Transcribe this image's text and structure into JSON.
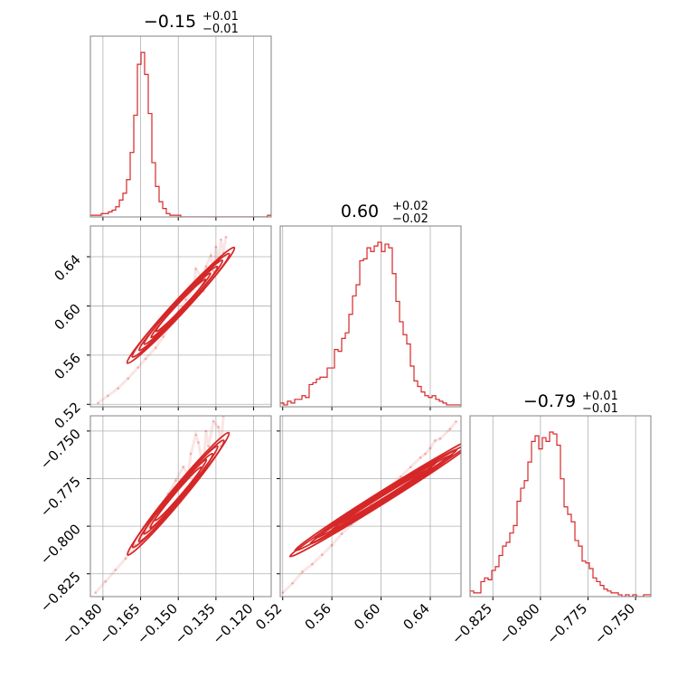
{
  "chart_data": {
    "type": "corner",
    "color": "#d62728",
    "grid": true,
    "parameters": [
      {
        "title": {
          "median": "−0.15",
          "plus": "+0.01",
          "minus": "−0.01"
        },
        "range": [
          -0.185,
          -0.113
        ],
        "ticks": [
          {
            "value": -0.18,
            "label": "−0.180"
          },
          {
            "value": -0.165,
            "label": "−0.165"
          },
          {
            "value": -0.15,
            "label": "−0.150"
          },
          {
            "value": -0.135,
            "label": "−0.135"
          },
          {
            "value": -0.12,
            "label": "−0.120"
          }
        ]
      },
      {
        "title": {
          "median": "0.60",
          "plus": "+0.02",
          "minus": "−0.02"
        },
        "range": [
          0.518,
          0.665
        ],
        "ticks": [
          {
            "value": 0.52,
            "label": "0.52"
          },
          {
            "value": 0.56,
            "label": "0.56"
          },
          {
            "value": 0.6,
            "label": "0.60"
          },
          {
            "value": 0.64,
            "label": "0.64"
          }
        ]
      },
      {
        "title": {
          "median": "−0.79",
          "plus": "+0.01",
          "minus": "−0.01"
        },
        "range": [
          -0.837,
          -0.742
        ],
        "ticks": [
          {
            "value": -0.825,
            "label": "−0.825"
          },
          {
            "value": -0.8,
            "label": "−0.800"
          },
          {
            "value": -0.775,
            "label": "−0.775"
          },
          {
            "value": -0.75,
            "label": "−0.750"
          }
        ]
      }
    ],
    "histograms": [
      {
        "bin_start": -0.185,
        "bin_width": 0.00144,
        "counts": [
          1,
          1,
          1,
          2,
          2,
          3,
          4,
          6,
          10,
          14,
          22,
          38,
          60,
          90,
          97,
          84,
          61,
          32,
          18,
          9,
          5,
          2,
          1,
          1,
          1,
          0,
          0,
          0,
          0,
          0,
          0,
          0,
          0,
          0,
          0,
          0,
          0,
          0,
          0,
          0,
          0,
          0,
          0,
          0,
          0,
          0,
          0,
          0,
          0,
          1
        ]
      },
      {
        "bin_start": 0.518,
        "bin_width": 0.00294,
        "counts": [
          2,
          1,
          3,
          2,
          4,
          4,
          6,
          5,
          12,
          13,
          15,
          16,
          16,
          21,
          21,
          31,
          30,
          37,
          40,
          50,
          60,
          66,
          79,
          80,
          86,
          84,
          87,
          89,
          84,
          88,
          86,
          72,
          57,
          46,
          39,
          34,
          22,
          14,
          11,
          8,
          6,
          5,
          6,
          4,
          3,
          2,
          1,
          1,
          1,
          1
        ]
      },
      {
        "bin_start": -0.837,
        "bin_width": 0.0019,
        "counts": [
          3,
          2,
          2,
          8,
          10,
          9,
          14,
          16,
          22,
          27,
          29,
          34,
          38,
          51,
          58,
          62,
          72,
          83,
          86,
          79,
          85,
          83,
          88,
          87,
          81,
          63,
          48,
          44,
          40,
          30,
          27,
          19,
          18,
          15,
          10,
          8,
          6,
          4,
          3,
          2,
          2,
          1,
          0,
          1,
          0,
          1,
          0,
          0,
          1,
          1
        ]
      }
    ],
    "scatter": [
      {
        "x_param": 0,
        "y_param": 1,
        "points": [
          [
            -0.182,
            0.521
          ],
          [
            -0.178,
            0.527
          ],
          [
            -0.174,
            0.533
          ],
          [
            -0.17,
            0.541
          ],
          [
            -0.166,
            0.55
          ],
          [
            -0.163,
            0.557
          ],
          [
            -0.159,
            0.566
          ],
          [
            -0.156,
            0.575
          ],
          [
            -0.153,
            0.585
          ],
          [
            -0.15,
            0.595
          ],
          [
            -0.147,
            0.605
          ],
          [
            -0.144,
            0.614
          ],
          [
            -0.141,
            0.624
          ],
          [
            -0.139,
            0.632
          ],
          [
            -0.137,
            0.641
          ],
          [
            -0.135,
            0.648
          ],
          [
            -0.133,
            0.654
          ],
          [
            -0.143,
            0.63
          ],
          [
            -0.136,
            0.628
          ],
          [
            -0.132,
            0.643
          ],
          [
            -0.131,
            0.656
          ],
          [
            -0.134,
            0.637
          ],
          [
            -0.14,
            0.612
          ]
        ],
        "contour_centers": [
          [
            -0.15,
            0.598
          ],
          [
            -0.148,
            0.603
          ]
        ],
        "contour_axes": [
          [
            0.05,
            0.004
          ],
          [
            0.072,
            0.006
          ],
          [
            0.094,
            0.008
          ]
        ],
        "contour_angle": 47
      },
      {
        "x_param": 0,
        "y_param": 2,
        "points": [
          [
            -0.183,
            -0.835
          ],
          [
            -0.179,
            -0.829
          ],
          [
            -0.175,
            -0.823
          ],
          [
            -0.171,
            -0.817
          ],
          [
            -0.167,
            -0.81
          ],
          [
            -0.163,
            -0.803
          ],
          [
            -0.16,
            -0.797
          ],
          [
            -0.157,
            -0.79
          ],
          [
            -0.154,
            -0.783
          ],
          [
            -0.151,
            -0.776
          ],
          [
            -0.148,
            -0.769
          ],
          [
            -0.145,
            -0.762
          ],
          [
            -0.142,
            -0.756
          ],
          [
            -0.139,
            -0.75
          ],
          [
            -0.136,
            -0.745
          ],
          [
            -0.134,
            -0.748
          ],
          [
            -0.133,
            -0.758
          ],
          [
            -0.143,
            -0.752
          ],
          [
            -0.132,
            -0.742
          ],
          [
            -0.138,
            -0.758
          ],
          [
            -0.14,
            -0.77
          ],
          [
            -0.146,
            -0.773
          ]
        ],
        "contour_centers": [
          [
            -0.151,
            -0.785
          ],
          [
            -0.149,
            -0.781
          ]
        ],
        "contour_axes": [
          [
            0.05,
            0.004
          ],
          [
            0.072,
            0.006
          ],
          [
            0.094,
            0.008
          ]
        ],
        "contour_angle": 50
      },
      {
        "x_param": 1,
        "y_param": 2,
        "points": [
          [
            0.52,
            -0.835
          ],
          [
            0.528,
            -0.83
          ],
          [
            0.536,
            -0.824
          ],
          [
            0.544,
            -0.82
          ],
          [
            0.552,
            -0.815
          ],
          [
            0.56,
            -0.81
          ],
          [
            0.568,
            -0.804
          ],
          [
            0.576,
            -0.799
          ],
          [
            0.584,
            -0.795
          ],
          [
            0.592,
            -0.789
          ],
          [
            0.6,
            -0.784
          ],
          [
            0.608,
            -0.779
          ],
          [
            0.616,
            -0.774
          ],
          [
            0.624,
            -0.769
          ],
          [
            0.632,
            -0.764
          ],
          [
            0.64,
            -0.759
          ],
          [
            0.648,
            -0.754
          ],
          [
            0.656,
            -0.749
          ],
          [
            0.661,
            -0.745
          ],
          [
            0.644,
            -0.755
          ],
          [
            0.636,
            -0.762
          ]
        ],
        "contour_centers": [
          [
            0.6,
            -0.786
          ],
          [
            0.604,
            -0.783
          ]
        ],
        "contour_axes": [
          [
            0.075,
            0.003
          ],
          [
            0.105,
            0.0045
          ],
          [
            0.135,
            0.006
          ]
        ],
        "contour_angle": 32
      }
    ]
  }
}
